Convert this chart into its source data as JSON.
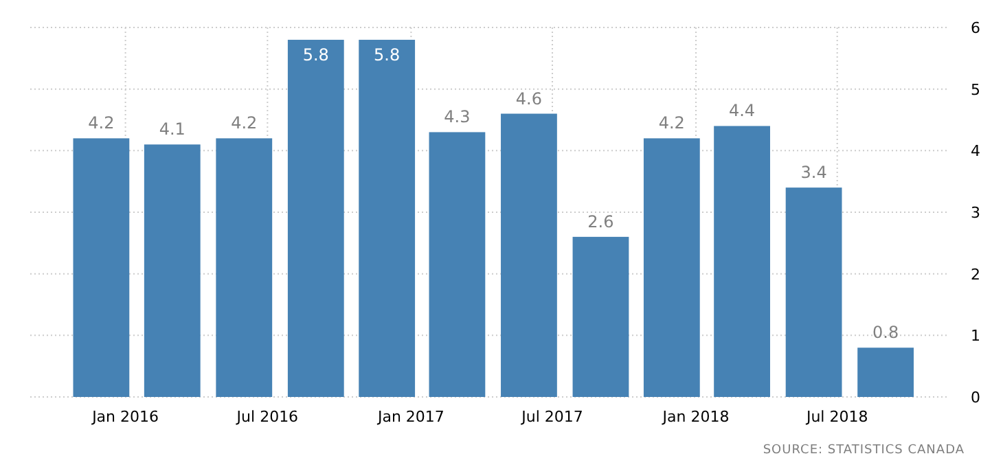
{
  "chart_data": {
    "type": "bar",
    "x": [
      "2015-12-01",
      "2016-03-01",
      "2016-06-01",
      "2016-09-01",
      "2016-12-01",
      "2017-03-01",
      "2017-06-01",
      "2017-09-01",
      "2017-12-01",
      "2018-03-01",
      "2018-06-01",
      "2018-09-01"
    ],
    "values": [
      4.2,
      4.1,
      4.2,
      5.8,
      5.8,
      4.3,
      4.6,
      2.6,
      4.2,
      4.4,
      3.4,
      0.8
    ],
    "color": "#4682b4",
    "data_labels": true,
    "xlim": [
      "2015-09-01",
      "2018-11-20"
    ],
    "xticks": [
      {
        "value": "2016-01-01",
        "label": "Jan 2016"
      },
      {
        "value": "2016-07-01",
        "label": "Jul 2016"
      },
      {
        "value": "2017-01-01",
        "label": "Jan 2017"
      },
      {
        "value": "2017-07-01",
        "label": "Jul 2017"
      },
      {
        "value": "2018-01-01",
        "label": "Jan 2018"
      },
      {
        "value": "2018-07-01",
        "label": "Jul 2018"
      }
    ],
    "ylim": [
      0,
      6
    ],
    "yticks": [
      0,
      1,
      2,
      3,
      4,
      5,
      6
    ],
    "grid": true,
    "annotations": [
      "SOURCE: STATISTICS CANADA"
    ]
  }
}
